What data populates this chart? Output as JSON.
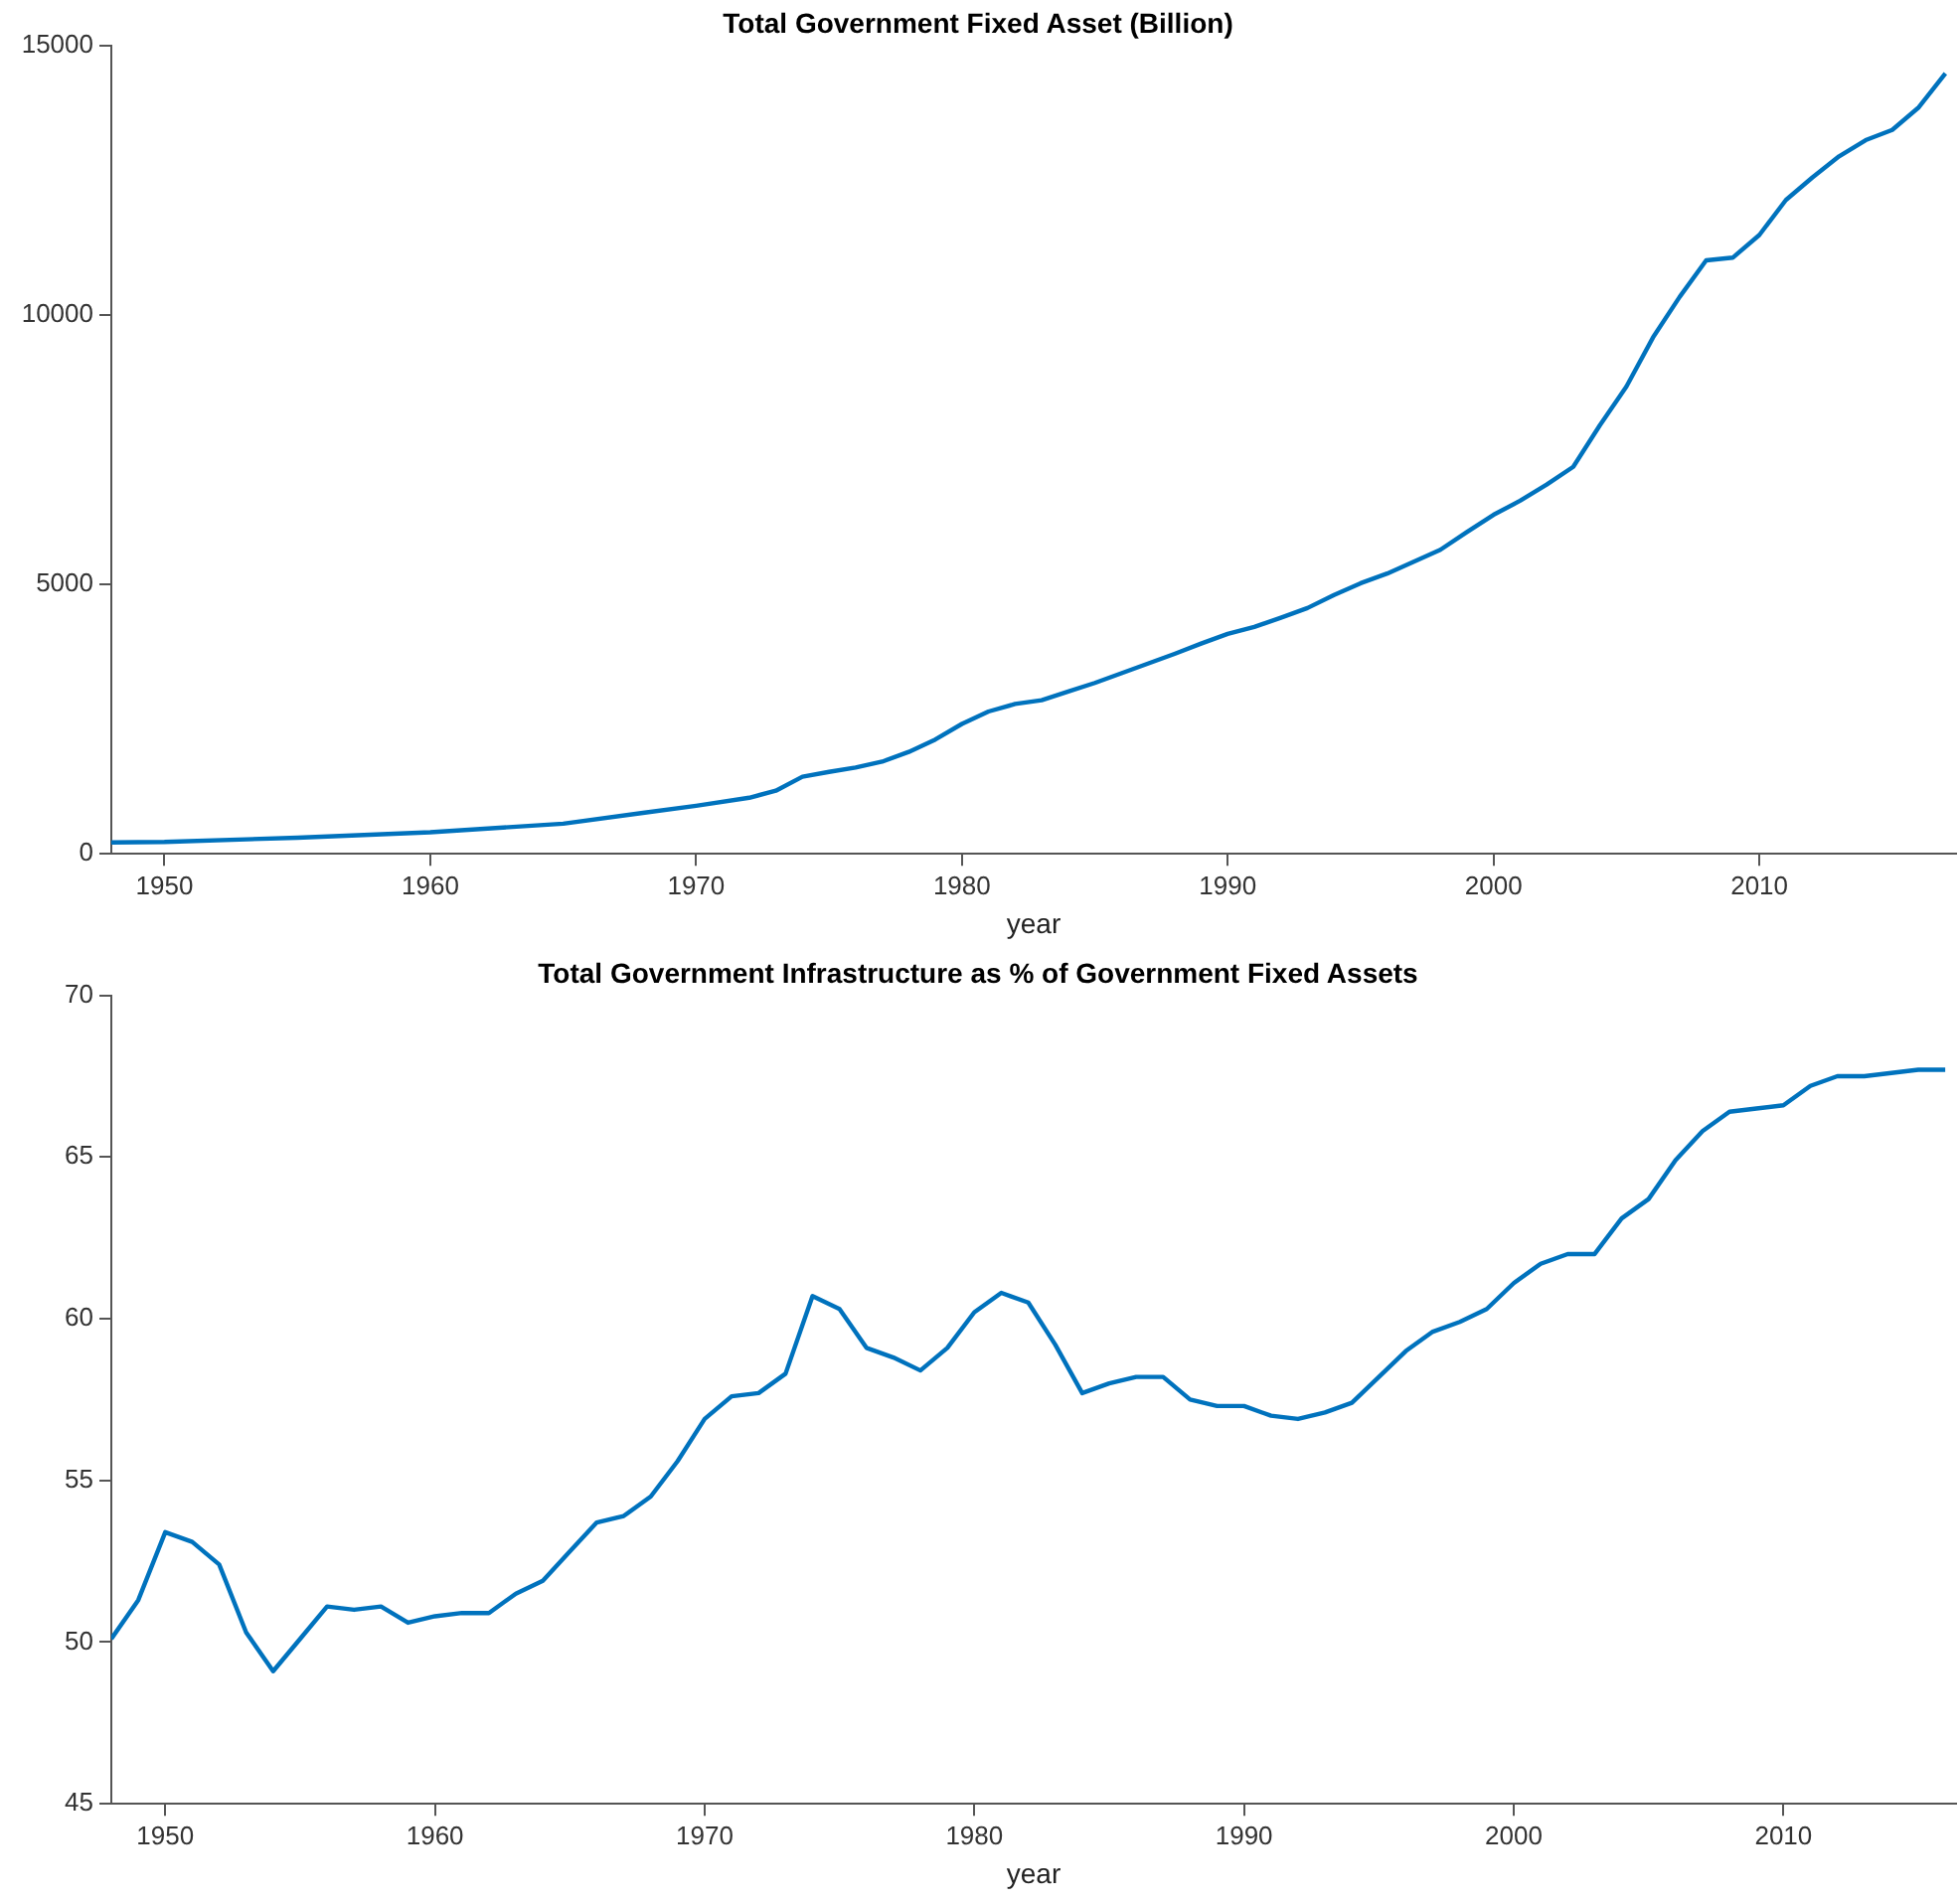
{
  "chart_data": [
    {
      "type": "line",
      "title": "Total Government Fixed Asset (Billion)",
      "xlabel": "year",
      "x": [
        1948,
        1950,
        1955,
        1960,
        1965,
        1968,
        1970,
        1972,
        1973,
        1974,
        1975,
        1976,
        1977,
        1978,
        1979,
        1980,
        1981,
        1982,
        1983,
        1984,
        1985,
        1986,
        1987,
        1988,
        1989,
        1990,
        1991,
        1992,
        1993,
        1994,
        1995,
        1996,
        1997,
        1998,
        1999,
        2000,
        2001,
        2002,
        2003,
        2004,
        2005,
        2006,
        2007,
        2008,
        2009,
        2010,
        2011,
        2012,
        2013,
        2014,
        2015,
        2016,
        2017
      ],
      "series": [
        {
          "color": "#0072bd",
          "values": [
            210,
            220,
            300,
            400,
            560,
            760,
            890,
            1040,
            1170,
            1430,
            1520,
            1600,
            1710,
            1890,
            2120,
            2410,
            2640,
            2780,
            2850,
            3010,
            3170,
            3350,
            3530,
            3710,
            3900,
            4080,
            4210,
            4380,
            4560,
            4800,
            5020,
            5200,
            5420,
            5640,
            5970,
            6290,
            6550,
            6850,
            7180,
            7950,
            8670,
            9580,
            10330,
            11010,
            11060,
            11480,
            12130,
            12550,
            12940,
            13240,
            13430,
            13850,
            14480
          ]
        }
      ],
      "xlim": [
        1948,
        2017.4
      ],
      "xticks": [
        1950,
        1960,
        1970,
        1980,
        1990,
        2000,
        2010
      ],
      "ylim": [
        0,
        15000
      ],
      "yticks": [
        0,
        5000,
        10000,
        15000
      ],
      "grid": false,
      "legend": false,
      "marker": "none",
      "line_style": "solid"
    },
    {
      "type": "line",
      "title": "Total Government Infrastructure as % of Government Fixed Assets",
      "xlabel": "year",
      "x": [
        1948,
        1949,
        1950,
        1951,
        1952,
        1953,
        1954,
        1955,
        1956,
        1957,
        1958,
        1959,
        1960,
        1961,
        1962,
        1963,
        1964,
        1965,
        1966,
        1967,
        1968,
        1969,
        1970,
        1971,
        1972,
        1973,
        1974,
        1975,
        1976,
        1977,
        1978,
        1979,
        1980,
        1981,
        1982,
        1983,
        1984,
        1985,
        1986,
        1987,
        1988,
        1989,
        1990,
        1991,
        1992,
        1993,
        1994,
        1995,
        1996,
        1997,
        1998,
        1999,
        2000,
        2001,
        2002,
        2003,
        2004,
        2005,
        2006,
        2007,
        2008,
        2009,
        2010,
        2011,
        2012,
        2013,
        2014,
        2015,
        2016
      ],
      "series": [
        {
          "color": "#0072bd",
          "values": [
            50.1,
            51.3,
            53.4,
            53.1,
            52.4,
            50.3,
            49.1,
            50.1,
            51.1,
            51.0,
            51.1,
            50.6,
            50.8,
            50.9,
            50.9,
            51.5,
            51.9,
            52.8,
            53.7,
            53.9,
            54.5,
            55.6,
            56.9,
            57.6,
            57.7,
            58.3,
            60.7,
            60.3,
            59.1,
            58.8,
            58.4,
            59.1,
            60.2,
            60.8,
            60.5,
            59.2,
            57.7,
            58.0,
            58.2,
            58.2,
            57.5,
            57.3,
            57.3,
            57.0,
            56.9,
            57.1,
            57.4,
            58.2,
            59.0,
            59.6,
            59.9,
            60.3,
            61.1,
            61.7,
            62.0,
            62.0,
            63.1,
            63.7,
            64.9,
            65.8,
            66.4,
            66.5,
            66.6,
            67.2,
            67.5,
            67.5,
            67.6,
            67.7,
            67.7
          ]
        }
      ],
      "xlim": [
        1948,
        2016.4
      ],
      "xticks": [
        1950,
        1960,
        1970,
        1980,
        1990,
        2000,
        2010
      ],
      "ylim": [
        45,
        70
      ],
      "yticks": [
        45,
        50,
        55,
        60,
        65,
        70
      ],
      "grid": false,
      "legend": false,
      "marker": "none",
      "line_style": "solid"
    }
  ]
}
